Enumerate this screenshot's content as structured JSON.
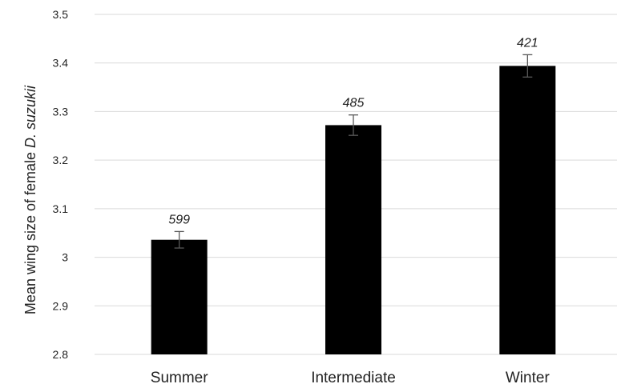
{
  "chart_data": {
    "type": "bar",
    "categories": [
      "Summer",
      "Intermediate",
      "Winter"
    ],
    "values": [
      3.036,
      3.272,
      3.394
    ],
    "errors": [
      0.017,
      0.021,
      0.023
    ],
    "data_labels": [
      "599",
      "485",
      "421"
    ],
    "ylabel_prefix": "Mean wing size of female ",
    "ylabel_species": "D. suzukii",
    "ylim": [
      2.8,
      3.5
    ],
    "yticks": [
      "2.8",
      "2.9",
      "3",
      "3.1",
      "3.2",
      "3.3",
      "3.4",
      "3.5"
    ],
    "ytick_values": [
      2.8,
      2.9,
      3.0,
      3.1,
      3.2,
      3.3,
      3.4,
      3.5
    ],
    "grid": true,
    "colors": {
      "bar": "#000000",
      "grid": "#d9d9d9",
      "error_bar": "#595959"
    }
  }
}
